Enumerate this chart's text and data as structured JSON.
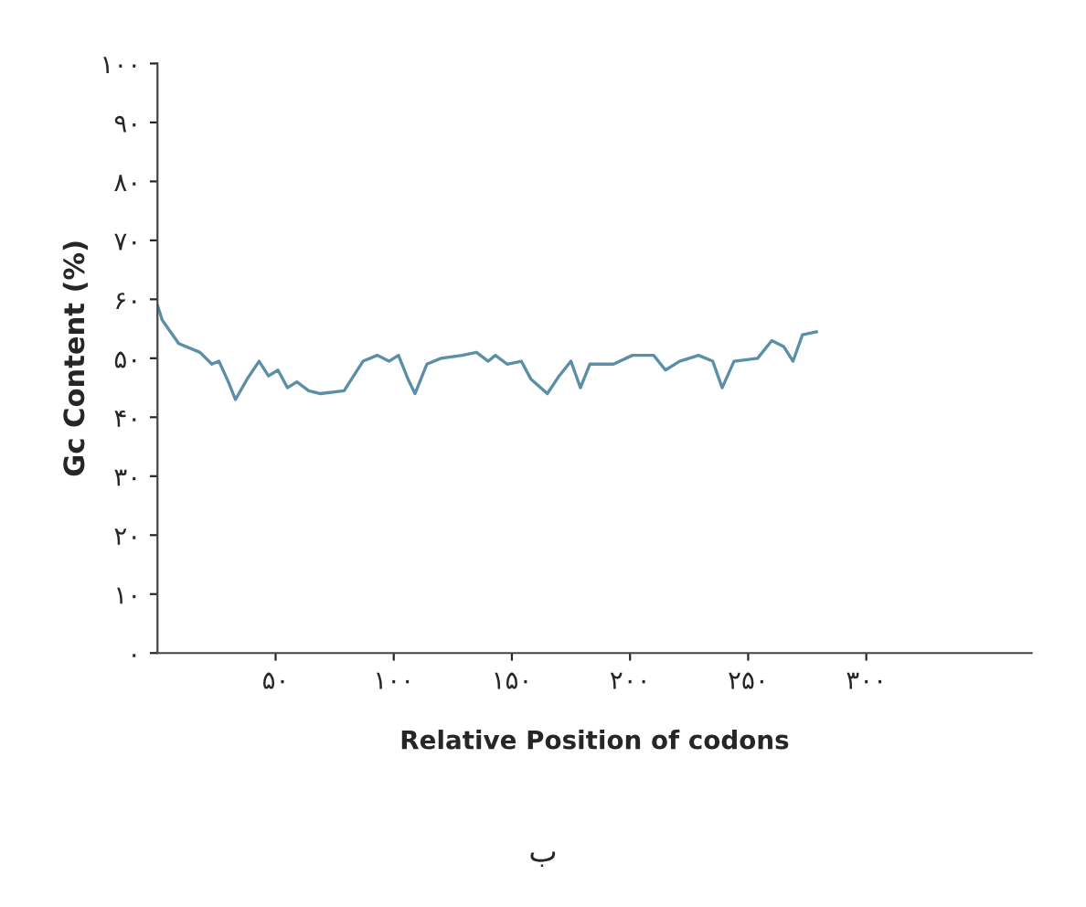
{
  "chart_data": {
    "type": "line",
    "xlabel": "Relative Position of codons",
    "ylabel": "Gc Content (%)",
    "annotations": [
      "ب"
    ],
    "series": [
      {
        "color": "#5b8fa8",
        "x": [
          0,
          2,
          9,
          18,
          23,
          26,
          30,
          33,
          38,
          43,
          47,
          51,
          55,
          59,
          64,
          69,
          79,
          83,
          87,
          93,
          98,
          102,
          106,
          109,
          114,
          120,
          129,
          135,
          140,
          143,
          148,
          154,
          158,
          165,
          170,
          175,
          179,
          183,
          193,
          201,
          210,
          215,
          221,
          229,
          235,
          239,
          244,
          254,
          260,
          265,
          269,
          273,
          279
        ],
        "values": [
          59,
          56.5,
          52.5,
          51,
          49,
          49.5,
          46,
          43,
          46.5,
          49.5,
          47,
          48,
          45,
          46,
          44.5,
          44,
          44.5,
          47,
          49.5,
          50.5,
          49.5,
          50.5,
          46.5,
          44,
          49,
          50,
          50.5,
          51,
          49.5,
          50.5,
          49,
          49.5,
          46.5,
          44,
          47,
          49.5,
          45,
          49,
          49,
          50.5,
          50.5,
          48,
          49.5,
          50.5,
          49.5,
          45,
          49.5,
          50,
          53,
          52,
          49.5,
          54,
          54.5
        ]
      }
    ],
    "xlim": [
      0,
      370
    ],
    "xticks": [
      {
        "value": 50,
        "label": "۵۰"
      },
      {
        "value": 100,
        "label": "۱۰۰"
      },
      {
        "value": 150,
        "label": "۱۵۰"
      },
      {
        "value": 200,
        "label": "۲۰۰"
      },
      {
        "value": 250,
        "label": "۲۵۰"
      },
      {
        "value": 300,
        "label": "۳۰۰"
      }
    ],
    "ylim": [
      0,
      100
    ],
    "yticks": [
      {
        "value": 0,
        "label": "۰"
      },
      {
        "value": 10,
        "label": "۱۰"
      },
      {
        "value": 20,
        "label": "۲۰"
      },
      {
        "value": 30,
        "label": "۳۰"
      },
      {
        "value": 40,
        "label": "۴۰"
      },
      {
        "value": 50,
        "label": "۵۰"
      },
      {
        "value": 60,
        "label": "۶۰"
      },
      {
        "value": 70,
        "label": "۷۰"
      },
      {
        "value": 80,
        "label": "۸۰"
      },
      {
        "value": 90,
        "label": "۹۰"
      },
      {
        "value": 100,
        "label": "۱۰۰"
      }
    ],
    "grid": false,
    "legend": false
  }
}
